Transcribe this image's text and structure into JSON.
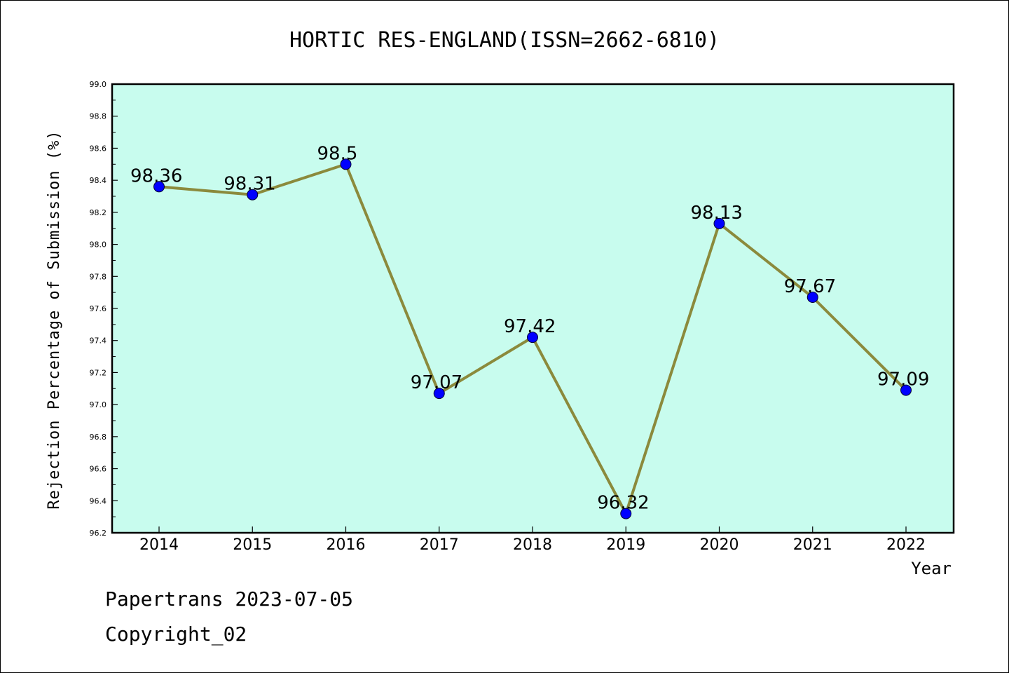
{
  "chart_data": {
    "type": "line",
    "title": "HORTIC RES-ENGLAND(ISSN=2662-6810)",
    "xlabel": "Year",
    "ylabel": "Rejection Percentage of Submission (%)",
    "categories": [
      "2014",
      "2015",
      "2016",
      "2017",
      "2018",
      "2019",
      "2020",
      "2021",
      "2022"
    ],
    "values": [
      98.36,
      98.31,
      98.5,
      97.07,
      97.42,
      96.32,
      98.13,
      97.67,
      97.09
    ],
    "data_labels": [
      "98.36",
      "98.31",
      "98.5",
      "97.07",
      "97.42",
      "96.32",
      "98.13",
      "97.67",
      "97.09"
    ],
    "ylim": [
      96.2,
      99.0
    ],
    "yticks": [
      "96.2",
      "96.4",
      "96.6",
      "96.8",
      "97.0",
      "97.2",
      "97.4",
      "97.6",
      "97.8",
      "98.0",
      "98.2",
      "98.4",
      "98.6",
      "98.8",
      "99.0"
    ],
    "grid": false,
    "colors": {
      "background": "#c8fcee",
      "line": "#8b8a3c",
      "marker": "#0000ff"
    }
  },
  "footer": {
    "line1": "Papertrans 2023-07-05",
    "line2": "Copyright_02"
  }
}
